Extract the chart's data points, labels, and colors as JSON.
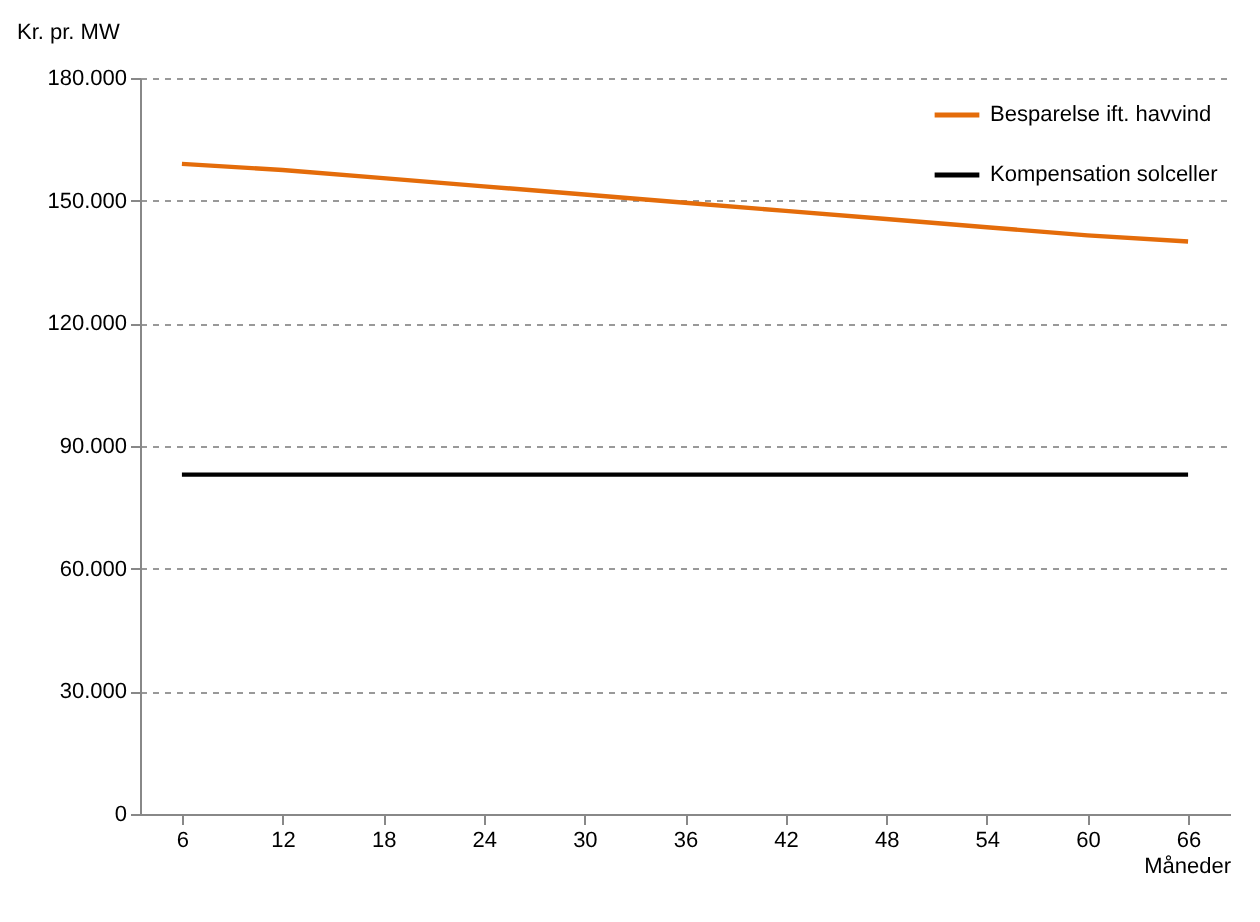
{
  "chart_data": {
    "type": "line",
    "ylabel": "Kr. pr. MW",
    "xlabel": "Måneder",
    "x": [
      6,
      12,
      18,
      24,
      30,
      36,
      42,
      48,
      54,
      60,
      66
    ],
    "series": [
      {
        "name": "Besparelse ift. havvind",
        "color": "#e46c0a",
        "values": [
          159000,
          157500,
          155500,
          153500,
          151500,
          149500,
          147500,
          145500,
          143500,
          141500,
          140000
        ]
      },
      {
        "name": "Kompensation solceller",
        "color": "#000000",
        "values": [
          83000,
          83000,
          83000,
          83000,
          83000,
          83000,
          83000,
          83000,
          83000,
          83000,
          83000
        ]
      }
    ],
    "xlim": [
      3.5,
      68.5
    ],
    "xticks": [
      6,
      12,
      18,
      24,
      30,
      36,
      42,
      48,
      54,
      60,
      66
    ],
    "ylim": [
      0,
      180000
    ],
    "yticks": [
      0,
      {
        "value": 30000,
        "label": "30.000"
      },
      {
        "value": 60000,
        "label": "60.000"
      },
      {
        "value": 90000,
        "label": "90.000"
      },
      {
        "value": 120000,
        "label": "120.000"
      },
      {
        "value": 150000,
        "label": "150.000"
      },
      {
        "value": 180000,
        "label": "180.000"
      }
    ],
    "grid": "y",
    "legend": "top right",
    "marker": "none",
    "line_style": "solid"
  }
}
